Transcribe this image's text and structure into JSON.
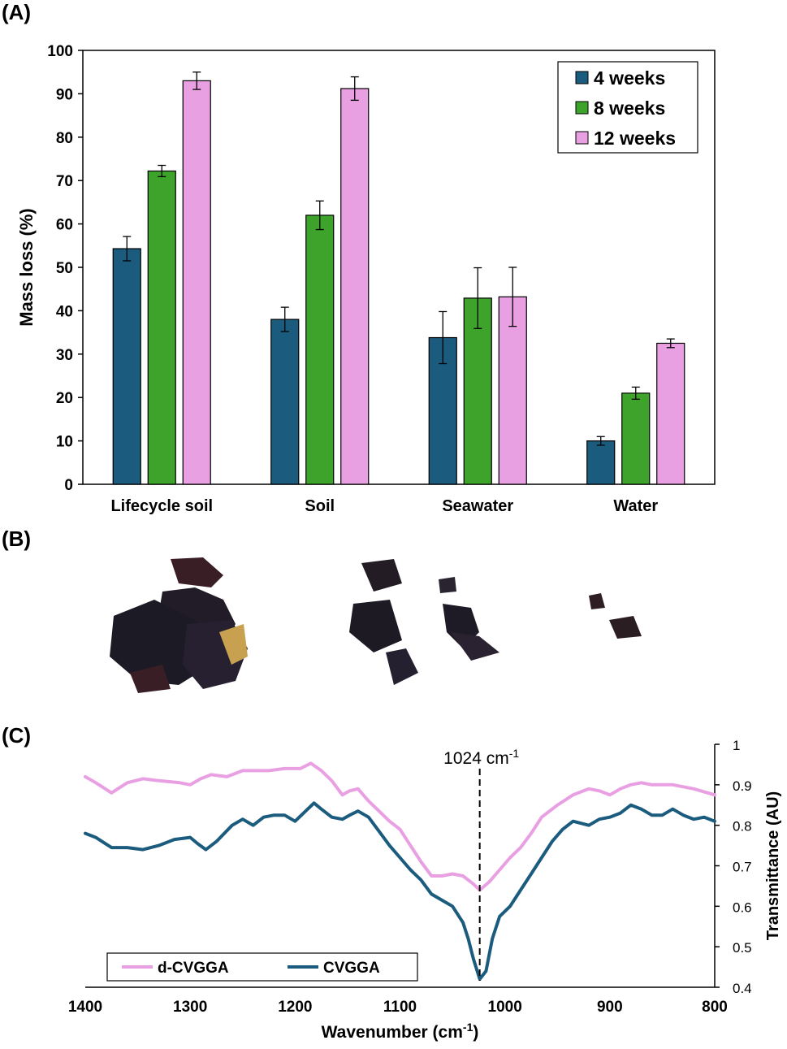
{
  "panels": {
    "a": "(A)",
    "b": "(B)",
    "c": "(C)"
  },
  "chart_data": [
    {
      "type": "bar",
      "title": "",
      "xlabel": "",
      "ylabel": "Mass loss (%)",
      "ylim": [
        0,
        100
      ],
      "yticks": [
        0,
        10,
        20,
        30,
        40,
        50,
        60,
        70,
        80,
        90,
        100
      ],
      "categories": [
        "Lifecycle soil",
        "Soil",
        "Seawater",
        "Water"
      ],
      "legend_position": "top-right",
      "series": [
        {
          "name": "4 weeks",
          "color": "#1b5c7e",
          "values": [
            54.3,
            38.0,
            33.8,
            10.0
          ],
          "errors": [
            2.8,
            2.8,
            6.0,
            1.0
          ]
        },
        {
          "name": "8 weeks",
          "color": "#3da32b",
          "values": [
            72.2,
            62.0,
            42.9,
            21.0
          ],
          "errors": [
            1.3,
            3.3,
            7.0,
            1.4
          ]
        },
        {
          "name": "12 weeks",
          "color": "#e9a0e3",
          "values": [
            93.0,
            91.2,
            43.2,
            32.5
          ],
          "errors": [
            2.0,
            2.7,
            6.8,
            1.0
          ]
        }
      ]
    },
    {
      "type": "line",
      "title": "",
      "xlabel": "Wavenumber (cm",
      "xlabel_sup": "-1",
      "xlabel_tail": ")",
      "ylabel": "Transmittance (AU)",
      "xlim": [
        1400,
        800
      ],
      "ylim": [
        0.4,
        1.0
      ],
      "xticks": [
        1400,
        1300,
        1200,
        1100,
        1000,
        900,
        800
      ],
      "yticks": [
        0.4,
        0.5,
        0.6,
        0.7,
        0.8,
        0.9,
        1
      ],
      "annotation": {
        "text": "1024 cm",
        "sup": "-1",
        "x": 1024
      },
      "legend_position": "bottom-left",
      "series": [
        {
          "name": "d-CVGGA",
          "color": "#e9a0e3",
          "x": [
            1400,
            1390,
            1375,
            1360,
            1345,
            1330,
            1310,
            1300,
            1290,
            1280,
            1265,
            1250,
            1240,
            1225,
            1210,
            1195,
            1185,
            1175,
            1165,
            1155,
            1148,
            1140,
            1130,
            1120,
            1110,
            1100,
            1090,
            1080,
            1070,
            1060,
            1050,
            1040,
            1030,
            1024,
            1015,
            1005,
            995,
            985,
            975,
            965,
            950,
            935,
            920,
            910,
            900,
            890,
            880,
            870,
            860,
            850,
            840,
            820,
            800
          ],
          "y": [
            0.92,
            0.905,
            0.88,
            0.905,
            0.915,
            0.91,
            0.905,
            0.9,
            0.915,
            0.925,
            0.92,
            0.935,
            0.935,
            0.935,
            0.94,
            0.94,
            0.953,
            0.935,
            0.91,
            0.875,
            0.885,
            0.89,
            0.86,
            0.835,
            0.81,
            0.79,
            0.75,
            0.71,
            0.675,
            0.675,
            0.68,
            0.675,
            0.655,
            0.64,
            0.66,
            0.69,
            0.72,
            0.745,
            0.78,
            0.82,
            0.85,
            0.875,
            0.89,
            0.885,
            0.875,
            0.89,
            0.9,
            0.905,
            0.9,
            0.9,
            0.9,
            0.89,
            0.875
          ]
        },
        {
          "name": "CVGGA",
          "color": "#1b5c7e",
          "x": [
            1400,
            1390,
            1375,
            1360,
            1345,
            1330,
            1315,
            1300,
            1293,
            1285,
            1275,
            1260,
            1250,
            1240,
            1230,
            1220,
            1210,
            1200,
            1190,
            1182,
            1175,
            1165,
            1155,
            1148,
            1140,
            1130,
            1120,
            1110,
            1100,
            1090,
            1080,
            1070,
            1060,
            1050,
            1040,
            1035,
            1030,
            1024,
            1018,
            1012,
            1005,
            995,
            985,
            975,
            965,
            955,
            945,
            935,
            920,
            910,
            900,
            890,
            880,
            870,
            860,
            850,
            840,
            830,
            820,
            810,
            800
          ],
          "y": [
            0.78,
            0.77,
            0.745,
            0.745,
            0.74,
            0.75,
            0.765,
            0.77,
            0.755,
            0.74,
            0.76,
            0.8,
            0.815,
            0.8,
            0.82,
            0.825,
            0.825,
            0.81,
            0.835,
            0.855,
            0.84,
            0.82,
            0.815,
            0.825,
            0.835,
            0.82,
            0.785,
            0.75,
            0.72,
            0.69,
            0.665,
            0.63,
            0.615,
            0.6,
            0.56,
            0.52,
            0.47,
            0.42,
            0.44,
            0.52,
            0.575,
            0.6,
            0.64,
            0.68,
            0.72,
            0.76,
            0.79,
            0.81,
            0.8,
            0.815,
            0.82,
            0.83,
            0.85,
            0.84,
            0.825,
            0.825,
            0.84,
            0.825,
            0.815,
            0.82,
            0.81
          ]
        }
      ]
    }
  ],
  "photos": [
    {
      "name": "sample-photo-1",
      "color": "#1f1b24"
    },
    {
      "name": "sample-photo-2",
      "color": "#1f1b24"
    },
    {
      "name": "sample-photo-3",
      "color": "#2a1e22"
    }
  ]
}
